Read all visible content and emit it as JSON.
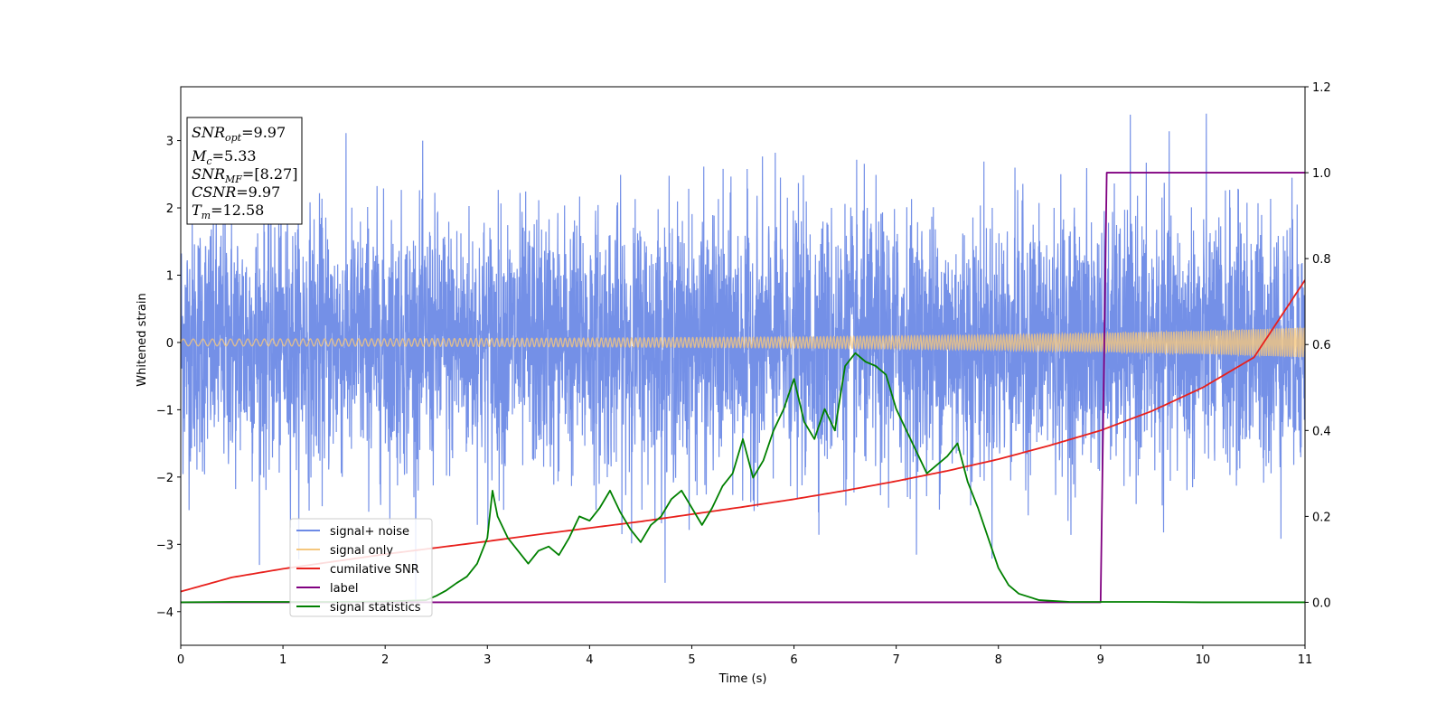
{
  "chart_data": {
    "type": "line",
    "xlabel": "Time (s)",
    "ylabel": "Whitened strain",
    "xlim": [
      0,
      11
    ],
    "ylim_left": [
      -4.5,
      3.8
    ],
    "ylim_right": [
      -0.1,
      1.2
    ],
    "x_ticks": [
      "0",
      "1",
      "2",
      "3",
      "4",
      "5",
      "6",
      "7",
      "8",
      "9",
      "10",
      "11"
    ],
    "y_left_ticks": [
      "3",
      "2",
      "1",
      "0",
      "−1",
      "−2",
      "−3",
      "−4"
    ],
    "y_right_ticks": [
      "1.2",
      "1.0",
      "0.8",
      "0.6",
      "0.4",
      "0.2",
      "0.0"
    ],
    "grid": false,
    "legend_position": "lower-left",
    "annotations": {
      "snr_opt": {
        "name": "SNR",
        "sub": "opt",
        "value": "=9.97"
      },
      "mc": {
        "name": "M",
        "sub": "c",
        "value": "=5.33"
      },
      "snr_mf": {
        "name": "SNR",
        "sub": "MF",
        "value": "=[8.27]"
      },
      "csnr": {
        "name": "CSNR",
        "value": "=9.97"
      },
      "tm": {
        "name": "T",
        "sub": "m",
        "value": "=12.58"
      }
    },
    "series": [
      {
        "name": "signal+ noise",
        "axis": "left",
        "color": "#6d8ae6",
        "noise_std": 0.95,
        "noise_range": [
          -4.2,
          3.4
        ]
      },
      {
        "name": "signal only",
        "axis": "left",
        "color": "#f5c77e",
        "envelope": {
          "x": [
            0,
            2,
            4,
            6,
            8,
            10,
            11
          ],
          "amplitude": [
            0.05,
            0.055,
            0.065,
            0.08,
            0.11,
            0.17,
            0.22
          ]
        }
      },
      {
        "name": "cumilative SNR",
        "axis": "right",
        "color": "#e8201c",
        "x": [
          0,
          0.5,
          1,
          1.5,
          2,
          2.5,
          3,
          3.5,
          4,
          4.5,
          5,
          5.5,
          6,
          6.5,
          7,
          7.5,
          8,
          8.5,
          9,
          9.5,
          10,
          10.5,
          11
        ],
        "y": [
          0.025,
          0.058,
          0.078,
          0.095,
          0.112,
          0.127,
          0.142,
          0.158,
          0.173,
          0.188,
          0.205,
          0.222,
          0.24,
          0.26,
          0.282,
          0.306,
          0.333,
          0.365,
          0.4,
          0.445,
          0.5,
          0.57,
          0.75
        ]
      },
      {
        "name": "label",
        "axis": "right",
        "color": "#800080",
        "x": [
          0,
          9.0,
          9.06,
          11
        ],
        "y": [
          0.0,
          0.0,
          1.0,
          1.0
        ]
      },
      {
        "name": "signal statistics",
        "axis": "right",
        "color": "#008000",
        "x": [
          0,
          0.5,
          1.0,
          1.5,
          2.0,
          2.4,
          2.5,
          2.6,
          2.7,
          2.8,
          2.9,
          3.0,
          3.05,
          3.1,
          3.2,
          3.3,
          3.4,
          3.5,
          3.6,
          3.7,
          3.8,
          3.9,
          4.0,
          4.1,
          4.2,
          4.3,
          4.4,
          4.5,
          4.6,
          4.7,
          4.8,
          4.9,
          5.0,
          5.1,
          5.2,
          5.3,
          5.4,
          5.5,
          5.6,
          5.7,
          5.8,
          5.9,
          6.0,
          6.1,
          6.2,
          6.3,
          6.4,
          6.5,
          6.6,
          6.7,
          6.8,
          6.9,
          7.0,
          7.1,
          7.2,
          7.3,
          7.4,
          7.5,
          7.6,
          7.7,
          7.8,
          7.9,
          8.0,
          8.1,
          8.2,
          8.4,
          8.7,
          9.0,
          9.5,
          10.0,
          11.0
        ],
        "y": [
          0.0,
          0.001,
          0.001,
          0.001,
          0.002,
          0.005,
          0.015,
          0.028,
          0.045,
          0.06,
          0.09,
          0.15,
          0.26,
          0.2,
          0.15,
          0.12,
          0.09,
          0.12,
          0.13,
          0.11,
          0.15,
          0.2,
          0.19,
          0.22,
          0.26,
          0.21,
          0.17,
          0.14,
          0.18,
          0.2,
          0.24,
          0.26,
          0.22,
          0.18,
          0.22,
          0.27,
          0.3,
          0.38,
          0.29,
          0.33,
          0.4,
          0.45,
          0.52,
          0.42,
          0.38,
          0.45,
          0.4,
          0.55,
          0.58,
          0.56,
          0.55,
          0.53,
          0.45,
          0.4,
          0.35,
          0.3,
          0.32,
          0.34,
          0.37,
          0.28,
          0.22,
          0.15,
          0.08,
          0.04,
          0.02,
          0.005,
          0.001,
          0.001,
          0.001,
          0.0,
          0.0
        ]
      }
    ]
  }
}
